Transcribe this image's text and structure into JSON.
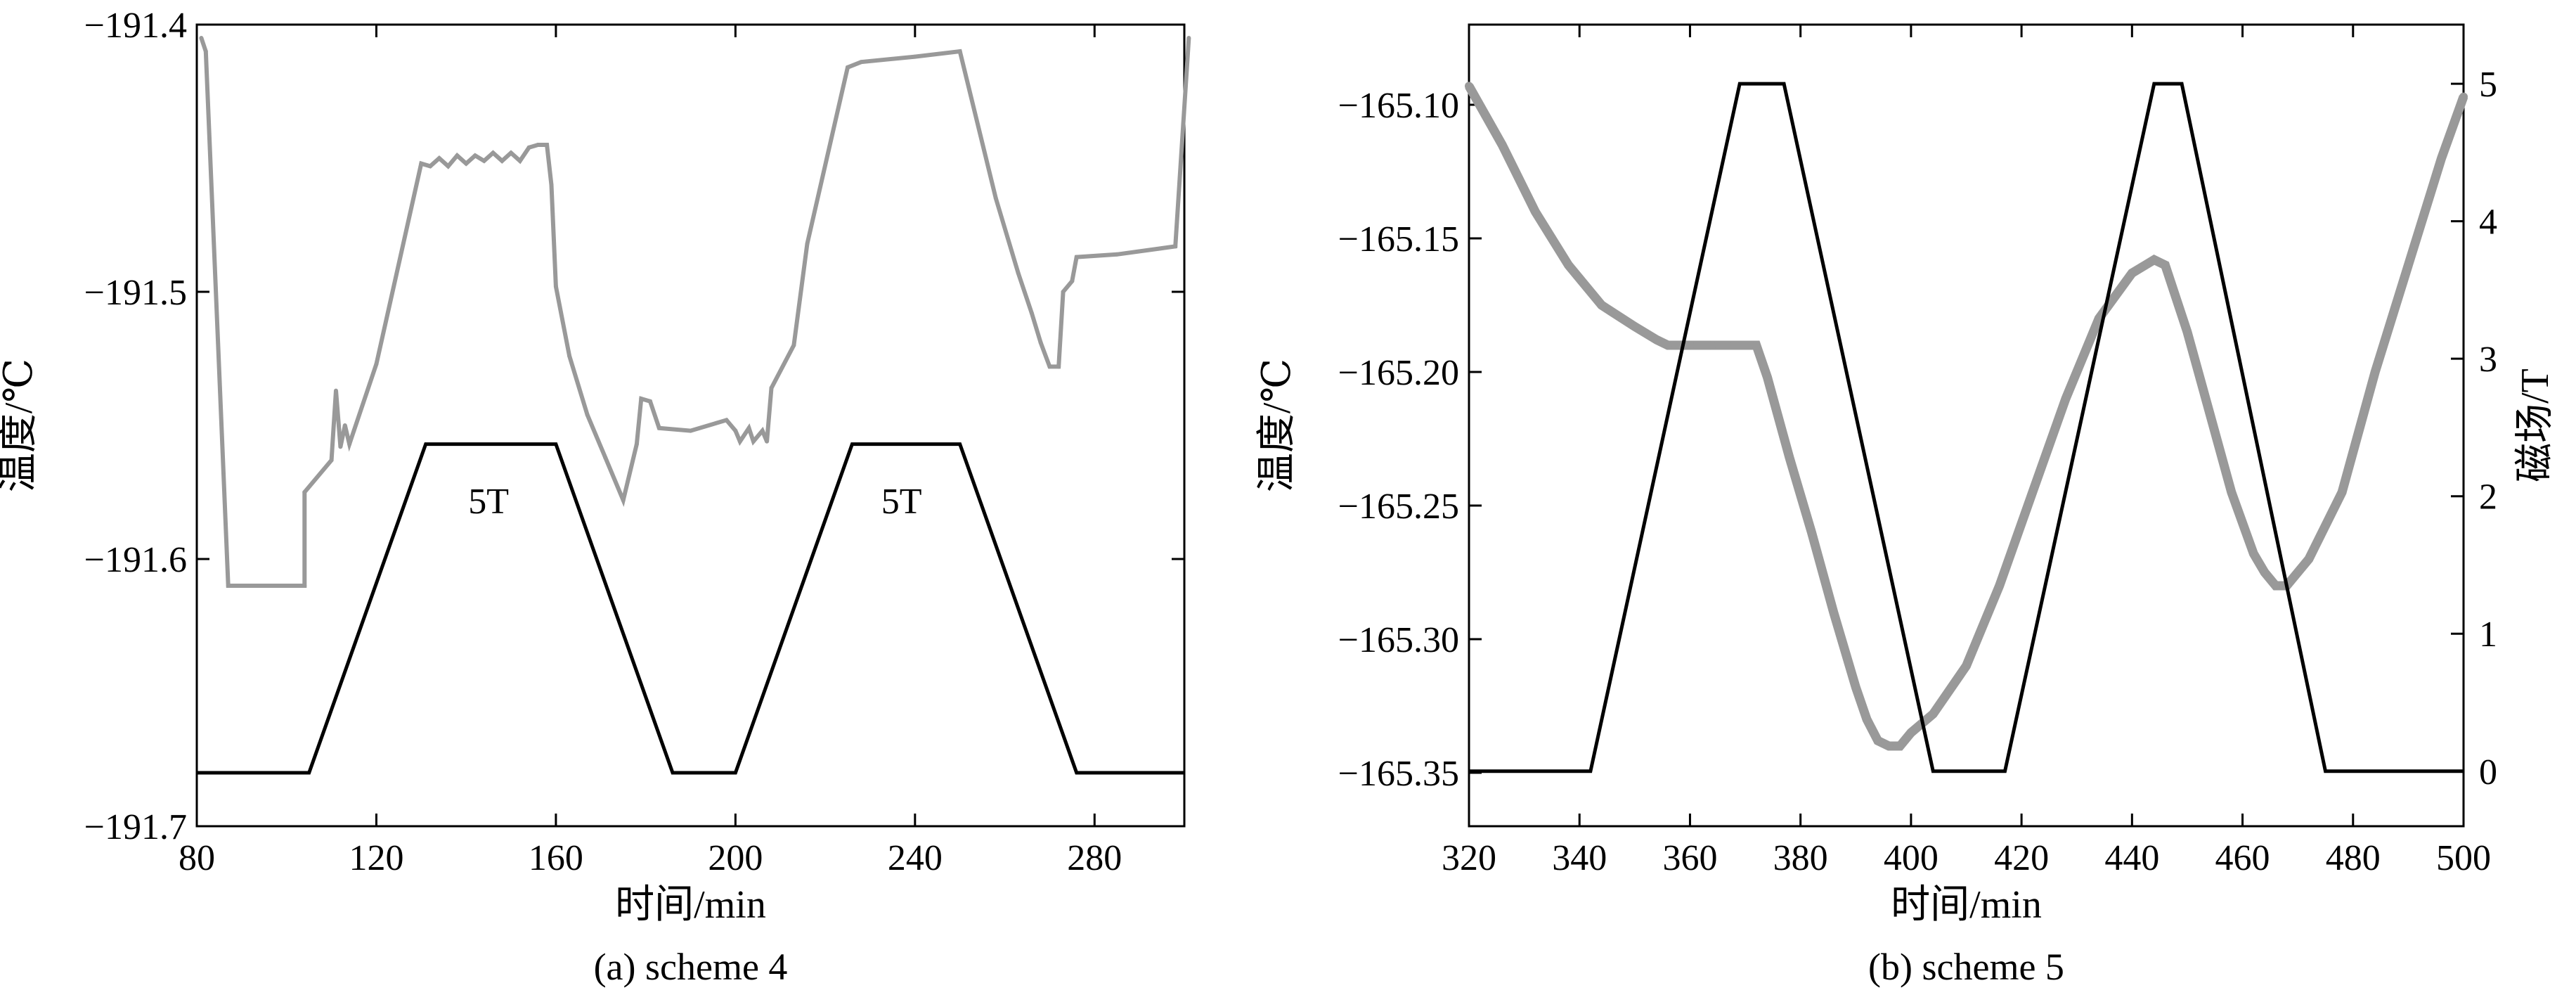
{
  "chart_data": [
    {
      "type": "line",
      "caption": "(a) scheme 4",
      "xlabel": "时间/min",
      "ylabel": "温度/℃",
      "xlim": [
        80,
        300
      ],
      "ylim": [
        -191.7,
        -191.4
      ],
      "xticks": [
        80,
        120,
        160,
        200,
        240,
        280
      ],
      "xtick_labels": [
        "80",
        "120",
        "160",
        "200",
        "240",
        "280"
      ],
      "yticks": [
        -191.7,
        -191.6,
        -191.5,
        -191.4
      ],
      "ytick_labels": [
        "−191.7",
        "−191.6",
        "−191.5",
        "−191.4"
      ],
      "grid": false,
      "annotations": [
        {
          "text": "5T",
          "x": 145,
          "y": -191.566
        },
        {
          "text": "5T",
          "x": 237,
          "y": -191.566
        }
      ],
      "series": [
        {
          "color": "#999999",
          "role": "temperature",
          "x": [
            81,
            82,
            87,
            104,
            104,
            110,
            111,
            112,
            113,
            114,
            115,
            120,
            130,
            132,
            134,
            136,
            138,
            140,
            142,
            144,
            146,
            148,
            150,
            152,
            154,
            156,
            158,
            159,
            160,
            163,
            167,
            171,
            175,
            178,
            179,
            181,
            183,
            190,
            198,
            200,
            201,
            203,
            204,
            206,
            207,
            208,
            213,
            216,
            225,
            228,
            240,
            250,
            258,
            263,
            266,
            268,
            270,
            272,
            273,
            275,
            276,
            285,
            298,
            301
          ],
          "y": [
            -191.405,
            -191.41,
            -191.61,
            -191.61,
            -191.575,
            -191.563,
            -191.537,
            -191.558,
            -191.55,
            -191.557,
            -191.552,
            -191.527,
            -191.452,
            -191.453,
            -191.45,
            -191.453,
            -191.449,
            -191.452,
            -191.449,
            -191.451,
            -191.448,
            -191.451,
            -191.448,
            -191.451,
            -191.446,
            -191.445,
            -191.445,
            -191.46,
            -191.498,
            -191.524,
            -191.546,
            -191.562,
            -191.578,
            -191.557,
            -191.54,
            -191.541,
            -191.551,
            -191.552,
            -191.548,
            -191.552,
            -191.556,
            -191.551,
            -191.556,
            -191.552,
            -191.556,
            -191.536,
            -191.52,
            -191.482,
            -191.416,
            -191.414,
            -191.412,
            -191.41,
            -191.465,
            -191.493,
            -191.508,
            -191.519,
            -191.528,
            -191.528,
            -191.5,
            -191.496,
            -191.487,
            -191.486,
            -191.483,
            -191.405
          ]
        },
        {
          "color": "#000000",
          "role": "magnetic-field",
          "x": [
            80,
            105,
            131,
            160,
            186,
            200,
            226,
            250,
            276,
            300
          ],
          "y": [
            -191.68,
            -191.68,
            -191.557,
            -191.557,
            -191.68,
            -191.68,
            -191.557,
            -191.557,
            -191.68,
            -191.68
          ]
        }
      ]
    },
    {
      "type": "line",
      "caption": "(b) scheme 5",
      "xlabel": "时间/min",
      "ylabel": "温度/℃",
      "y2label": "磁场/T",
      "xlim": [
        320,
        500
      ],
      "ylim": [
        -165.37,
        -165.07
      ],
      "y2lim": [
        -0.4,
        5.43
      ],
      "xticks": [
        320,
        340,
        360,
        380,
        400,
        420,
        440,
        460,
        480,
        500
      ],
      "xtick_labels": [
        "320",
        "340",
        "360",
        "380",
        "400",
        "420",
        "440",
        "460",
        "480",
        "500"
      ],
      "yticks": [
        -165.35,
        -165.3,
        -165.25,
        -165.2,
        -165.15,
        -165.1
      ],
      "ytick_labels": [
        "−165.35",
        "−165.30",
        "−165.25",
        "−165.20",
        "−165.15",
        "−165.10"
      ],
      "y2ticks": [
        0,
        1,
        2,
        3,
        4,
        5
      ],
      "y2tick_labels": [
        "0",
        "1",
        "2",
        "3",
        "4",
        "5"
      ],
      "grid": false,
      "series": [
        {
          "color": "#999999",
          "role": "temperature",
          "axis": "left",
          "x": [
            320,
            326,
            332,
            338,
            344,
            350,
            354,
            356,
            360,
            364,
            368,
            372,
            374,
            378,
            382,
            386,
            390,
            392,
            394,
            396,
            398,
            400,
            404,
            410,
            416,
            422,
            428,
            434,
            440,
            444,
            446,
            450,
            454,
            458,
            462,
            464,
            466,
            468,
            472,
            478,
            484,
            490,
            496,
            500
          ],
          "y": [
            -165.093,
            -165.115,
            -165.14,
            -165.16,
            -165.175,
            -165.183,
            -165.188,
            -165.19,
            -165.19,
            -165.19,
            -165.19,
            -165.19,
            -165.202,
            -165.232,
            -165.26,
            -165.29,
            -165.318,
            -165.33,
            -165.338,
            -165.34,
            -165.34,
            -165.335,
            -165.328,
            -165.31,
            -165.28,
            -165.245,
            -165.21,
            -165.18,
            -165.163,
            -165.158,
            -165.16,
            -165.185,
            -165.215,
            -165.245,
            -165.268,
            -165.275,
            -165.28,
            -165.28,
            -165.27,
            -165.245,
            -165.2,
            -165.16,
            -165.12,
            -165.097
          ]
        },
        {
          "color": "#000000",
          "role": "magnetic-field",
          "axis": "right",
          "x": [
            320,
            342,
            369,
            377,
            404,
            417,
            444,
            449,
            475,
            500
          ],
          "y": [
            0,
            0,
            5,
            5,
            0,
            0,
            5,
            5,
            0,
            0
          ]
        }
      ]
    }
  ]
}
